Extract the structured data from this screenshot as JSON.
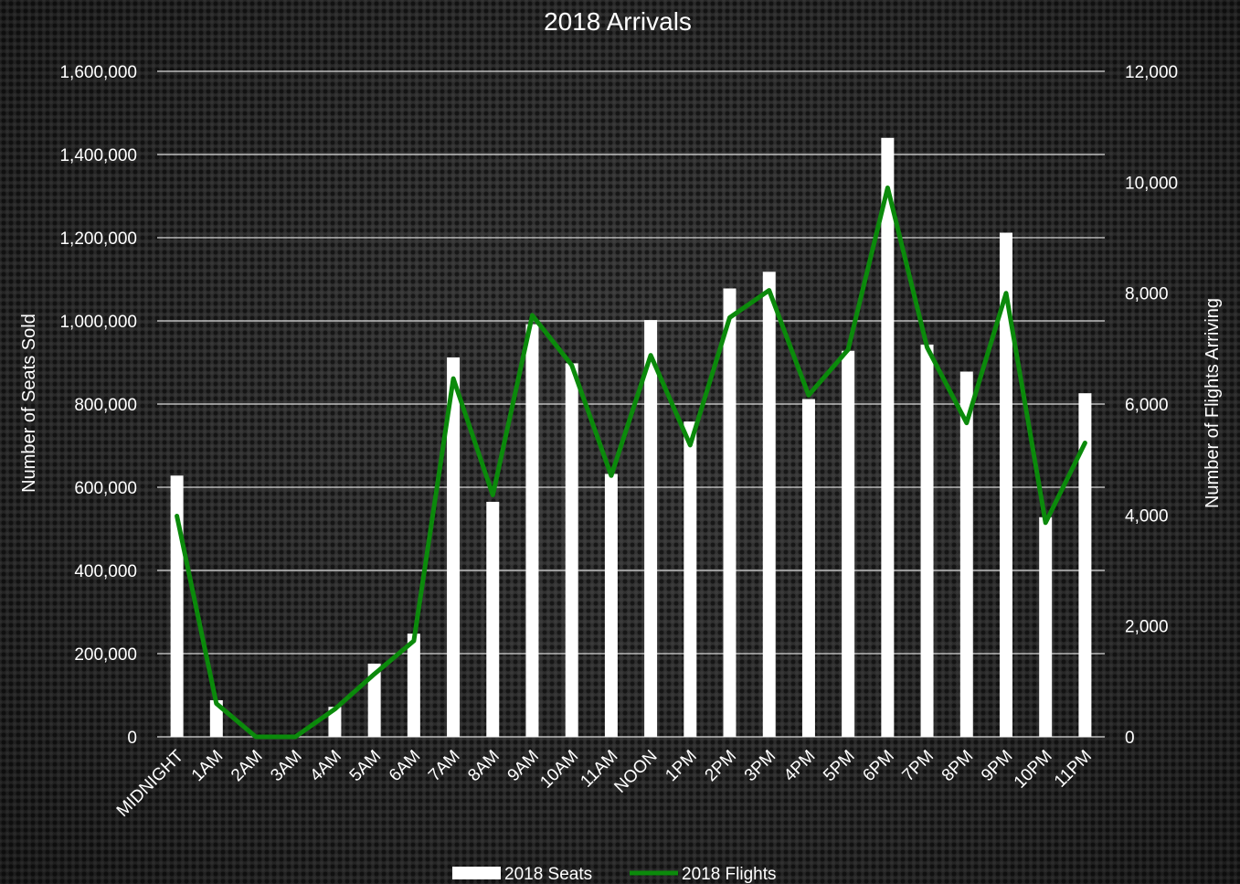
{
  "chart_data": {
    "type": "bar",
    "title": "2018 Arrivals",
    "categories": [
      "MIDNIGHT",
      "1AM",
      "2AM",
      "3AM",
      "4AM",
      "5AM",
      "6AM",
      "7AM",
      "8AM",
      "9AM",
      "10AM",
      "11AM",
      "NOON",
      "1PM",
      "2PM",
      "3PM",
      "4PM",
      "5PM",
      "6PM",
      "7PM",
      "8PM",
      "9PM",
      "10PM",
      "11PM"
    ],
    "series": [
      {
        "name": "2018 Seats",
        "type": "bar",
        "axis": "left",
        "color": "#ffffff",
        "values": [
          628000,
          88000,
          0,
          0,
          72000,
          176000,
          248000,
          912000,
          565000,
          992000,
          898000,
          632000,
          1002000,
          758000,
          1078000,
          1118000,
          812000,
          928000,
          1440000,
          943000,
          878000,
          1212000,
          528000,
          826000
        ]
      },
      {
        "name": "2018 Flights",
        "type": "line",
        "axis": "right",
        "color": "#0b8a0b",
        "values": [
          3980,
          600,
          0,
          0,
          500,
          1130,
          1730,
          6460,
          4360,
          7600,
          6700,
          4710,
          6880,
          5260,
          7560,
          8050,
          6160,
          6980,
          9900,
          7020,
          5660,
          8000,
          3860,
          5300
        ]
      }
    ],
    "ylabel": "Number of Seats Sold",
    "ylim": [
      0,
      1600000
    ],
    "yticks": [
      "0",
      "200,000",
      "400,000",
      "600,000",
      "800,000",
      "1,000,000",
      "1,200,000",
      "1,400,000",
      "1,600,000"
    ],
    "y2label": "Number of Flights Arriving",
    "y2lim": [
      0,
      12000
    ],
    "y2ticks": [
      "0",
      "2,000",
      "4,000",
      "6,000",
      "8,000",
      "10,000",
      "12,000"
    ],
    "grid": true,
    "legend_position": "bottom"
  }
}
